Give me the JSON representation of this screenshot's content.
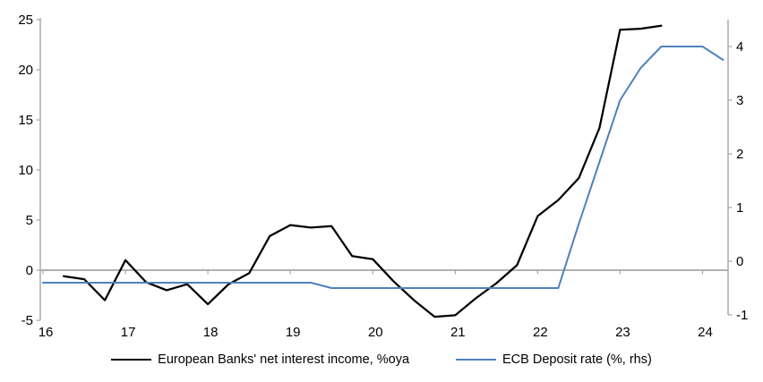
{
  "chart_data": {
    "type": "line",
    "title": "",
    "x_axis": {
      "range": [
        15.967,
        24.31
      ],
      "ticks": [
        16,
        17,
        18,
        19,
        20,
        21,
        22,
        23,
        24
      ]
    },
    "left_axis": {
      "range": [
        -5,
        25
      ],
      "ticks": [
        25,
        20,
        15,
        10,
        5,
        0,
        -5
      ]
    },
    "right_axis": {
      "range": [
        -1.1,
        4.5
      ],
      "ticks": [
        4,
        3,
        2,
        1,
        0,
        -1
      ]
    },
    "grid": "zero-line-only",
    "legend_position": "bottom",
    "series": [
      {
        "name": "European Banks' net interest income, %oya",
        "axis": "left",
        "color": "#000000",
        "width": 2.25,
        "points": [
          [
            16.25,
            -0.6
          ],
          [
            16.5,
            -0.9
          ],
          [
            16.75,
            -3.0
          ],
          [
            17.0,
            1.0
          ],
          [
            17.25,
            -1.2
          ],
          [
            17.5,
            -2.0
          ],
          [
            17.75,
            -1.4
          ],
          [
            18.0,
            -3.4
          ],
          [
            18.25,
            -1.4
          ],
          [
            18.5,
            -0.3
          ],
          [
            18.75,
            3.4
          ],
          [
            19.0,
            4.5
          ],
          [
            19.25,
            4.25
          ],
          [
            19.5,
            4.4
          ],
          [
            19.75,
            1.4
          ],
          [
            20.0,
            1.1
          ],
          [
            20.25,
            -1.1
          ],
          [
            20.5,
            -3.0
          ],
          [
            20.75,
            -4.65
          ],
          [
            21.0,
            -4.5
          ],
          [
            21.25,
            -2.8
          ],
          [
            21.5,
            -1.3
          ],
          [
            21.75,
            0.5
          ],
          [
            22.0,
            5.4
          ],
          [
            22.25,
            7.0
          ],
          [
            22.5,
            9.2
          ],
          [
            22.75,
            14.2
          ],
          [
            23.0,
            24.0
          ],
          [
            23.25,
            24.1
          ],
          [
            23.5,
            24.4
          ]
        ]
      },
      {
        "name": "ECB Deposit rate (%, rhs)",
        "axis": "right",
        "color": "#4F81BD",
        "width": 2,
        "points": [
          [
            16.0,
            -0.4
          ],
          [
            19.25,
            -0.4
          ],
          [
            19.5,
            -0.5
          ],
          [
            22.25,
            -0.5
          ],
          [
            22.5,
            0.7
          ],
          [
            22.75,
            1.85
          ],
          [
            23.0,
            3.0
          ],
          [
            23.25,
            3.6
          ],
          [
            23.5,
            4.0
          ],
          [
            24.0,
            4.0
          ],
          [
            24.25,
            3.75
          ]
        ]
      }
    ],
    "colors": {
      "axis": "#A6A6A6",
      "tick_label": "#000000",
      "background": "#FFFFFF"
    }
  }
}
